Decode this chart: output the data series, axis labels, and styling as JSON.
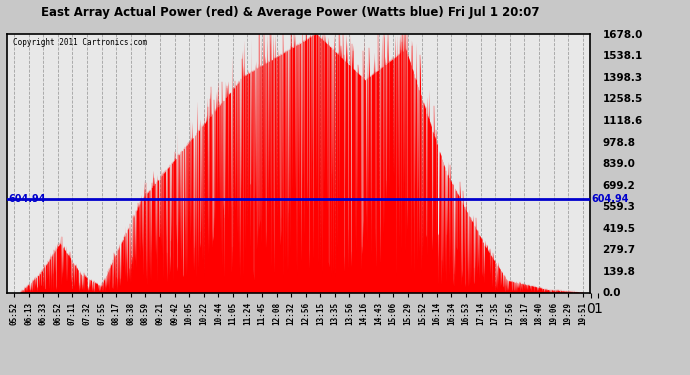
{
  "title": "East Array Actual Power (red) & Average Power (Watts blue) Fri Jul 1 20:07",
  "copyright": "Copyright 2011 Cartronics.com",
  "avg_power": 604.94,
  "y_ticks": [
    0.0,
    139.8,
    279.7,
    419.5,
    559.3,
    699.2,
    839.0,
    978.8,
    1118.6,
    1258.5,
    1398.3,
    1538.1,
    1678.0
  ],
  "y_min": 0.0,
  "y_max": 1678.0,
  "x_labels": [
    "05:52",
    "06:13",
    "06:33",
    "06:52",
    "07:11",
    "07:32",
    "07:55",
    "08:17",
    "08:38",
    "08:59",
    "09:21",
    "09:42",
    "10:05",
    "10:22",
    "10:44",
    "11:05",
    "11:24",
    "11:45",
    "12:08",
    "12:32",
    "12:56",
    "13:15",
    "13:35",
    "13:56",
    "14:16",
    "14:43",
    "15:06",
    "15:29",
    "15:52",
    "16:14",
    "16:34",
    "16:53",
    "17:14",
    "17:35",
    "17:56",
    "18:17",
    "18:40",
    "19:06",
    "19:29",
    "19:51"
  ],
  "bg_color": "#c8c8c8",
  "plot_bg": "#e8e8e8",
  "red_color": "#ff0000",
  "blue_color": "#0000cc",
  "grid_color": "#999999"
}
